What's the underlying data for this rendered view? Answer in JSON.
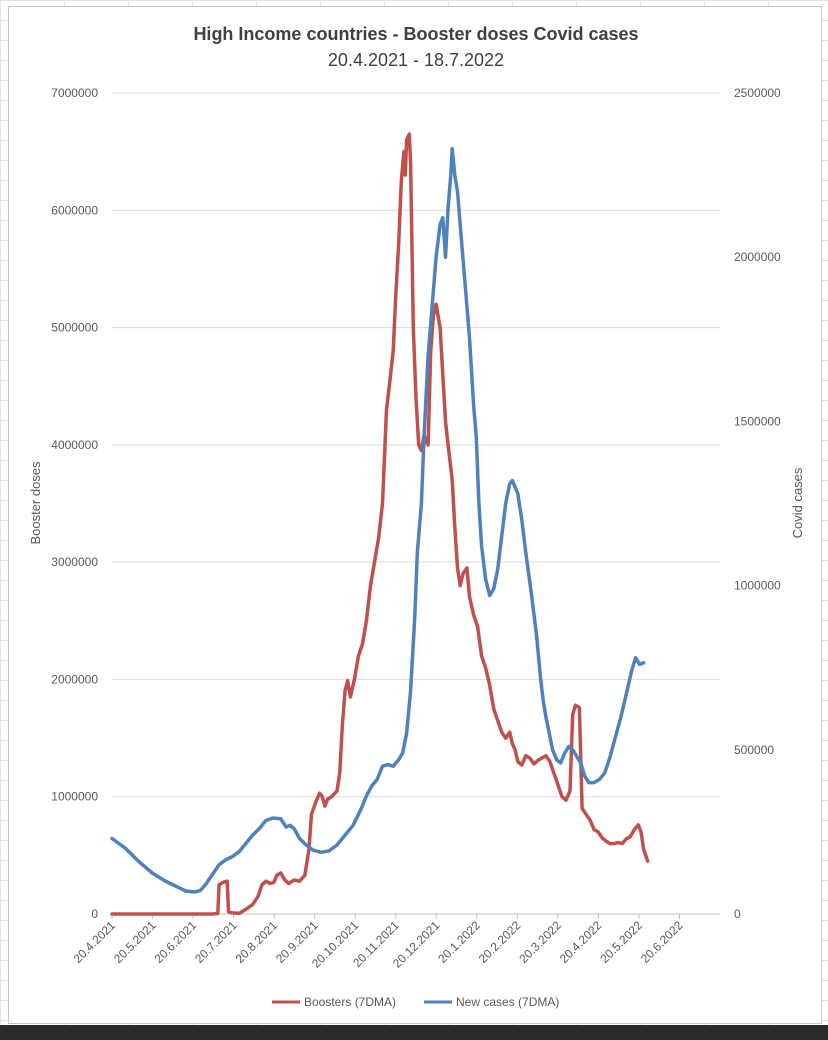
{
  "chart_data": {
    "type": "line",
    "title": "High Income countries - Booster doses Covid cases",
    "subtitle": "20.4.2021 - 18.7.2022",
    "ylabel": "Booster doses",
    "y2label": "Covid cases",
    "ylim": [
      0,
      7000000
    ],
    "y2lim": [
      0,
      2500000
    ],
    "yticks": [
      "0",
      "1000000",
      "2000000",
      "3000000",
      "4000000",
      "5000000",
      "6000000",
      "7000000"
    ],
    "y2ticks": [
      "0",
      "500000",
      "1000000",
      "1500000",
      "2000000",
      "2500000"
    ],
    "categories": [
      "20.4.2021",
      "20.5.2021",
      "20.6.2021",
      "20.7.2021",
      "20.8.2021",
      "20.9.2021",
      "20.10.2021",
      "20.11.2021",
      "20.12.2021",
      "20.1.2022",
      "20.2.2022",
      "20.3.2022",
      "20.4.2022",
      "20.5.2022",
      "20.6.2022"
    ],
    "x_range_days": [
      0,
      454
    ],
    "series": [
      {
        "name": "Boosters (7DMA)",
        "axis": "left",
        "color": "#c0504d",
        "points": [
          [
            0,
            0
          ],
          [
            30,
            0
          ],
          [
            60,
            0
          ],
          [
            75,
            0
          ],
          [
            79,
            5000
          ],
          [
            80,
            250000
          ],
          [
            83,
            270000
          ],
          [
            86,
            280000
          ],
          [
            87,
            20000
          ],
          [
            89,
            10000
          ],
          [
            95,
            5000
          ],
          [
            100,
            40000
          ],
          [
            105,
            80000
          ],
          [
            109,
            150000
          ],
          [
            112,
            250000
          ],
          [
            115,
            280000
          ],
          [
            118,
            260000
          ],
          [
            121,
            270000
          ],
          [
            123,
            330000
          ],
          [
            126,
            350000
          ],
          [
            129,
            290000
          ],
          [
            132,
            260000
          ],
          [
            136,
            290000
          ],
          [
            140,
            280000
          ],
          [
            144,
            330000
          ],
          [
            147,
            550000
          ],
          [
            149,
            850000
          ],
          [
            152,
            950000
          ],
          [
            155,
            1030000
          ],
          [
            157,
            1000000
          ],
          [
            159,
            920000
          ],
          [
            161,
            980000
          ],
          [
            164,
            1000000
          ],
          [
            168,
            1050000
          ],
          [
            170,
            1200000
          ],
          [
            172,
            1600000
          ],
          [
            174,
            1900000
          ],
          [
            176,
            1990000
          ],
          [
            178,
            1850000
          ],
          [
            181,
            2000000
          ],
          [
            184,
            2200000
          ],
          [
            187,
            2300000
          ],
          [
            190,
            2500000
          ],
          [
            193,
            2800000
          ],
          [
            196,
            3000000
          ],
          [
            199,
            3200000
          ],
          [
            202,
            3500000
          ],
          [
            205,
            4300000
          ],
          [
            208,
            4600000
          ],
          [
            210,
            4800000
          ],
          [
            212,
            5300000
          ],
          [
            214,
            5700000
          ],
          [
            216,
            6250000
          ],
          [
            218,
            6500000
          ],
          [
            219,
            6300000
          ],
          [
            220,
            6600000
          ],
          [
            222,
            6650000
          ],
          [
            223,
            6400000
          ],
          [
            225,
            5000000
          ],
          [
            227,
            4400000
          ],
          [
            229,
            4000000
          ],
          [
            231,
            3950000
          ],
          [
            233,
            4080000
          ],
          [
            236,
            4000000
          ],
          [
            238,
            4800000
          ],
          [
            240,
            5100000
          ],
          [
            242,
            5200000
          ],
          [
            245,
            5000000
          ],
          [
            247,
            4600000
          ],
          [
            249,
            4200000
          ],
          [
            251,
            4000000
          ],
          [
            254,
            3700000
          ],
          [
            256,
            3300000
          ],
          [
            258,
            2950000
          ],
          [
            260,
            2800000
          ],
          [
            262,
            2900000
          ],
          [
            265,
            2950000
          ],
          [
            267,
            2700000
          ],
          [
            270,
            2550000
          ],
          [
            273,
            2450000
          ],
          [
            276,
            2200000
          ],
          [
            279,
            2100000
          ],
          [
            282,
            1950000
          ],
          [
            285,
            1750000
          ],
          [
            288,
            1650000
          ],
          [
            291,
            1550000
          ],
          [
            294,
            1500000
          ],
          [
            297,
            1550000
          ],
          [
            299,
            1450000
          ],
          [
            301,
            1400000
          ],
          [
            303,
            1300000
          ],
          [
            306,
            1270000
          ],
          [
            309,
            1350000
          ],
          [
            312,
            1330000
          ],
          [
            315,
            1280000
          ],
          [
            318,
            1310000
          ],
          [
            321,
            1330000
          ],
          [
            324,
            1350000
          ],
          [
            327,
            1300000
          ],
          [
            330,
            1200000
          ],
          [
            333,
            1100000
          ],
          [
            336,
            1000000
          ],
          [
            339,
            970000
          ],
          [
            342,
            1050000
          ],
          [
            344,
            1700000
          ],
          [
            346,
            1780000
          ],
          [
            349,
            1760000
          ],
          [
            351,
            900000
          ],
          [
            354,
            850000
          ],
          [
            357,
            800000
          ],
          [
            360,
            720000
          ],
          [
            363,
            700000
          ],
          [
            366,
            650000
          ],
          [
            369,
            620000
          ],
          [
            372,
            600000
          ],
          [
            375,
            600000
          ],
          [
            378,
            610000
          ],
          [
            381,
            600000
          ],
          [
            384,
            640000
          ],
          [
            387,
            660000
          ],
          [
            390,
            720000
          ],
          [
            393,
            760000
          ],
          [
            395,
            700000
          ],
          [
            397,
            550000
          ],
          [
            400,
            450000
          ]
        ]
      },
      {
        "name": "New cases (7DMA)",
        "axis": "right",
        "color": "#4f81bd",
        "points": [
          [
            0,
            230000
          ],
          [
            10,
            200000
          ],
          [
            20,
            160000
          ],
          [
            30,
            125000
          ],
          [
            40,
            100000
          ],
          [
            50,
            80000
          ],
          [
            55,
            70000
          ],
          [
            62,
            67000
          ],
          [
            66,
            72000
          ],
          [
            70,
            90000
          ],
          [
            75,
            120000
          ],
          [
            80,
            150000
          ],
          [
            85,
            165000
          ],
          [
            90,
            175000
          ],
          [
            95,
            190000
          ],
          [
            100,
            215000
          ],
          [
            105,
            240000
          ],
          [
            110,
            260000
          ],
          [
            115,
            285000
          ],
          [
            120,
            292000
          ],
          [
            126,
            290000
          ],
          [
            130,
            265000
          ],
          [
            133,
            270000
          ],
          [
            136,
            260000
          ],
          [
            140,
            230000
          ],
          [
            145,
            210000
          ],
          [
            150,
            195000
          ],
          [
            156,
            188000
          ],
          [
            162,
            192000
          ],
          [
            168,
            210000
          ],
          [
            174,
            240000
          ],
          [
            180,
            270000
          ],
          [
            186,
            320000
          ],
          [
            190,
            360000
          ],
          [
            194,
            390000
          ],
          [
            198,
            410000
          ],
          [
            202,
            450000
          ],
          [
            206,
            455000
          ],
          [
            210,
            450000
          ],
          [
            214,
            470000
          ],
          [
            217,
            490000
          ],
          [
            220,
            550000
          ],
          [
            223,
            680000
          ],
          [
            226,
            900000
          ],
          [
            228,
            1100000
          ],
          [
            231,
            1250000
          ],
          [
            233,
            1450000
          ],
          [
            236,
            1700000
          ],
          [
            239,
            1850000
          ],
          [
            242,
            2000000
          ],
          [
            245,
            2100000
          ],
          [
            247,
            2120000
          ],
          [
            249,
            2000000
          ],
          [
            251,
            2150000
          ],
          [
            253,
            2250000
          ],
          [
            254,
            2330000
          ],
          [
            256,
            2250000
          ],
          [
            258,
            2200000
          ],
          [
            261,
            2050000
          ],
          [
            264,
            1900000
          ],
          [
            267,
            1750000
          ],
          [
            270,
            1550000
          ],
          [
            272,
            1450000
          ],
          [
            274,
            1250000
          ],
          [
            276,
            1120000
          ],
          [
            279,
            1020000
          ],
          [
            282,
            970000
          ],
          [
            285,
            990000
          ],
          [
            288,
            1050000
          ],
          [
            291,
            1150000
          ],
          [
            294,
            1250000
          ],
          [
            297,
            1310000
          ],
          [
            299,
            1320000
          ],
          [
            301,
            1300000
          ],
          [
            303,
            1280000
          ],
          [
            306,
            1200000
          ],
          [
            309,
            1100000
          ],
          [
            313,
            980000
          ],
          [
            317,
            850000
          ],
          [
            320,
            720000
          ],
          [
            322,
            650000
          ],
          [
            324,
            600000
          ],
          [
            326,
            560000
          ],
          [
            329,
            500000
          ],
          [
            332,
            470000
          ],
          [
            335,
            460000
          ],
          [
            338,
            490000
          ],
          [
            341,
            510000
          ],
          [
            344,
            500000
          ],
          [
            347,
            480000
          ],
          [
            350,
            460000
          ],
          [
            353,
            420000
          ],
          [
            356,
            400000
          ],
          [
            360,
            400000
          ],
          [
            364,
            410000
          ],
          [
            368,
            430000
          ],
          [
            372,
            480000
          ],
          [
            376,
            540000
          ],
          [
            380,
            600000
          ],
          [
            384,
            670000
          ],
          [
            388,
            740000
          ],
          [
            391,
            780000
          ],
          [
            394,
            760000
          ],
          [
            397,
            765000
          ]
        ]
      }
    ],
    "legend_position": "bottom",
    "grid": true
  },
  "colors": {
    "boosters": "#c0504d",
    "cases": "#4f81bd",
    "grid": "#d9d9d9",
    "text": "#595959",
    "title": "#404040"
  }
}
